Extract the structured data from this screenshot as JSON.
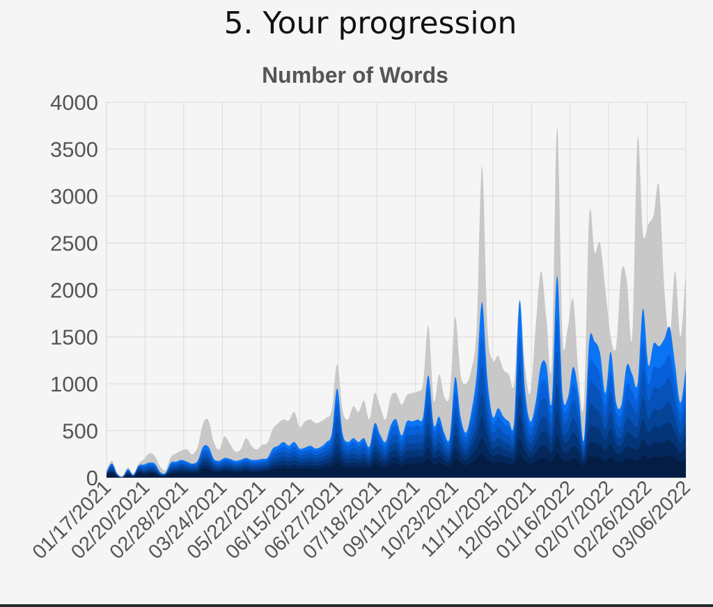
{
  "page": {
    "section_title": "5. Your progression"
  },
  "colors": {
    "background": "#f5f5f5",
    "grid": "#d9d9d9",
    "axis_text": "#555555",
    "layers": [
      "#c8c8c8",
      "#0a74f5",
      "#0760d9",
      "#0652b8",
      "#054397",
      "#053579",
      "#04285c",
      "#031d45"
    ]
  },
  "chart_data": {
    "type": "area",
    "stacked": true,
    "title": "Number of Words",
    "ylim": [
      0,
      4000
    ],
    "yticks": [
      0,
      500,
      1000,
      1500,
      2000,
      2500,
      3000,
      3500,
      4000
    ],
    "grid": true,
    "legend": "none",
    "x_tick_labels": [
      "01/17/2021",
      "02/20/2021",
      "02/28/2021",
      "03/24/2021",
      "05/22/2021",
      "06/15/2021",
      "06/27/2021",
      "07/18/2021",
      "09/11/2021",
      "10/23/2021",
      "11/11/2021",
      "12/05/2021",
      "01/16/2022",
      "02/07/2022",
      "02/26/2022",
      "03/06/2022"
    ],
    "points": [
      [
        0,
        80
      ],
      [
        1,
        180
      ],
      [
        2,
        50
      ],
      [
        3,
        20
      ],
      [
        4,
        110
      ],
      [
        5,
        40
      ],
      [
        6,
        150
      ],
      [
        7,
        200
      ],
      [
        8,
        260
      ],
      [
        9,
        230
      ],
      [
        10,
        120
      ],
      [
        11,
        80
      ],
      [
        12,
        220
      ],
      [
        13,
        260
      ],
      [
        14,
        290
      ],
      [
        15,
        300
      ],
      [
        16,
        250
      ],
      [
        17,
        330
      ],
      [
        18,
        580
      ],
      [
        19,
        610
      ],
      [
        20,
        380
      ],
      [
        21,
        300
      ],
      [
        22,
        440
      ],
      [
        23,
        360
      ],
      [
        24,
        280
      ],
      [
        25,
        300
      ],
      [
        26,
        420
      ],
      [
        27,
        340
      ],
      [
        28,
        300
      ],
      [
        29,
        350
      ],
      [
        30,
        370
      ],
      [
        31,
        520
      ],
      [
        32,
        580
      ],
      [
        33,
        620
      ],
      [
        34,
        610
      ],
      [
        35,
        700
      ],
      [
        36,
        540
      ],
      [
        37,
        600
      ],
      [
        38,
        620
      ],
      [
        39,
        580
      ],
      [
        40,
        600
      ],
      [
        41,
        640
      ],
      [
        42,
        720
      ],
      [
        43,
        1210
      ],
      [
        44,
        720
      ],
      [
        45,
        620
      ],
      [
        46,
        760
      ],
      [
        47,
        700
      ],
      [
        48,
        820
      ],
      [
        49,
        620
      ],
      [
        50,
        900
      ],
      [
        51,
        760
      ],
      [
        52,
        620
      ],
      [
        53,
        860
      ],
      [
        54,
        900
      ],
      [
        55,
        780
      ],
      [
        56,
        880
      ],
      [
        57,
        900
      ],
      [
        58,
        920
      ],
      [
        59,
        1000
      ],
      [
        60,
        1620
      ],
      [
        61,
        820
      ],
      [
        62,
        1100
      ],
      [
        63,
        860
      ],
      [
        64,
        900
      ],
      [
        65,
        1710
      ],
      [
        66,
        1100
      ],
      [
        67,
        1000
      ],
      [
        68,
        1150
      ],
      [
        69,
        1600
      ],
      [
        70,
        3320
      ],
      [
        71,
        1600
      ],
      [
        72,
        1250
      ],
      [
        73,
        1300
      ],
      [
        74,
        1150
      ],
      [
        75,
        1100
      ],
      [
        76,
        1000
      ],
      [
        77,
        1900
      ],
      [
        78,
        1200
      ],
      [
        79,
        900
      ],
      [
        80,
        1600
      ],
      [
        81,
        2200
      ],
      [
        82,
        1700
      ],
      [
        83,
        1200
      ],
      [
        84,
        3730
      ],
      [
        85,
        1500
      ],
      [
        86,
        1600
      ],
      [
        87,
        1900
      ],
      [
        88,
        1100
      ],
      [
        89,
        800
      ],
      [
        90,
        2800
      ],
      [
        91,
        2400
      ],
      [
        92,
        2500
      ],
      [
        93,
        2000
      ],
      [
        94,
        1500
      ],
      [
        95,
        1400
      ],
      [
        96,
        2200
      ],
      [
        97,
        2100
      ],
      [
        98,
        1500
      ],
      [
        99,
        3620
      ],
      [
        100,
        2600
      ],
      [
        101,
        2700
      ],
      [
        102,
        2800
      ],
      [
        103,
        3110
      ],
      [
        104,
        2000
      ],
      [
        105,
        1500
      ],
      [
        106,
        2200
      ],
      [
        107,
        1500
      ],
      [
        108,
        2200
      ]
    ],
    "series_layers": [
      {
        "values": [
          80,
          180,
          50,
          20,
          110,
          40,
          150,
          200,
          260,
          230,
          120,
          80,
          220,
          260,
          290,
          300,
          250,
          330,
          580,
          610,
          380,
          300,
          440,
          360,
          280,
          300,
          420,
          340,
          300,
          350,
          370,
          520,
          580,
          620,
          610,
          700,
          540,
          600,
          620,
          580,
          600,
          640,
          720,
          1210,
          720,
          620,
          760,
          700,
          820,
          620,
          900,
          760,
          620,
          860,
          900,
          780,
          880,
          900,
          920,
          1000,
          1620,
          820,
          1100,
          860,
          900,
          1710,
          1100,
          1000,
          1150,
          1600,
          3320,
          1600,
          1250,
          1300,
          1150,
          1100,
          1000,
          1900,
          1200,
          900,
          1600,
          2200,
          1700,
          1200,
          3730,
          1500,
          1600,
          1900,
          1100,
          800,
          2800,
          2400,
          2500,
          2000,
          1500,
          1400,
          2200,
          2100,
          1500,
          3620,
          2600,
          2700,
          2800,
          3110,
          2000,
          1500,
          2200,
          1500,
          2200
        ]
      },
      {
        "values": [
          60,
          150,
          40,
          10,
          90,
          30,
          130,
          140,
          160,
          150,
          60,
          50,
          160,
          170,
          190,
          170,
          150,
          180,
          330,
          330,
          200,
          180,
          210,
          200,
          180,
          190,
          210,
          190,
          190,
          200,
          210,
          310,
          340,
          380,
          340,
          380,
          310,
          320,
          340,
          310,
          330,
          380,
          470,
          950,
          470,
          380,
          420,
          380,
          420,
          330,
          580,
          460,
          380,
          560,
          620,
          450,
          600,
          600,
          620,
          640,
          1090,
          560,
          650,
          470,
          430,
          1070,
          650,
          480,
          700,
          1100,
          1870,
          1050,
          650,
          740,
          650,
          600,
          600,
          1880,
          950,
          600,
          800,
          1200,
          1200,
          800,
          2150,
          900,
          850,
          1180,
          900,
          400,
          1460,
          1450,
          1330,
          900,
          1340,
          800,
          780,
          1200,
          1100,
          1000,
          1800,
          1200,
          1430,
          1400,
          1480,
          1600,
          1200,
          800,
          1170
        ]
      },
      {
        "values": [
          55,
          140,
          35,
          10,
          80,
          28,
          120,
          120,
          140,
          130,
          50,
          45,
          140,
          150,
          170,
          150,
          140,
          160,
          290,
          280,
          180,
          160,
          190,
          180,
          160,
          170,
          190,
          170,
          170,
          180,
          190,
          270,
          300,
          330,
          300,
          330,
          280,
          290,
          300,
          280,
          300,
          340,
          420,
          800,
          420,
          340,
          380,
          340,
          380,
          300,
          520,
          410,
          340,
          500,
          550,
          400,
          540,
          540,
          560,
          570,
          950,
          500,
          580,
          420,
          390,
          900,
          580,
          430,
          620,
          900,
          1500,
          900,
          580,
          650,
          580,
          540,
          540,
          1500,
          800,
          540,
          700,
          1000,
          1000,
          700,
          1700,
          780,
          740,
          1000,
          780,
          360,
          1200,
          1200,
          1100,
          780,
          1120,
          700,
          680,
          1000,
          920,
          860,
          1450,
          1000,
          1180,
          1160,
          1220,
          1300,
          1000,
          700,
          980
        ]
      },
      {
        "values": [
          50,
          120,
          30,
          8,
          70,
          25,
          110,
          100,
          120,
          110,
          40,
          40,
          120,
          130,
          150,
          130,
          125,
          140,
          250,
          240,
          160,
          140,
          170,
          160,
          140,
          150,
          170,
          150,
          150,
          160,
          170,
          230,
          260,
          280,
          260,
          280,
          240,
          250,
          260,
          240,
          260,
          290,
          350,
          650,
          360,
          290,
          320,
          290,
          320,
          260,
          440,
          350,
          290,
          420,
          460,
          340,
          450,
          450,
          470,
          480,
          780,
          420,
          480,
          360,
          330,
          740,
          480,
          370,
          510,
          740,
          1200,
          740,
          480,
          540,
          480,
          450,
          450,
          1200,
          650,
          450,
          580,
          820,
          820,
          580,
          1350,
          650,
          620,
          820,
          650,
          310,
          980,
          980,
          900,
          650,
          920,
          580,
          560,
          820,
          760,
          710,
          1150,
          820,
          960,
          950,
          1000,
          1060,
          820,
          580,
          800
        ]
      },
      {
        "values": [
          45,
          100,
          25,
          5,
          60,
          20,
          95,
          80,
          100,
          90,
          35,
          35,
          100,
          110,
          125,
          110,
          105,
          115,
          210,
          200,
          135,
          120,
          140,
          135,
          120,
          125,
          140,
          125,
          125,
          135,
          140,
          190,
          210,
          230,
          210,
          230,
          200,
          205,
          215,
          200,
          215,
          240,
          285,
          480,
          290,
          240,
          260,
          240,
          260,
          215,
          350,
          285,
          240,
          340,
          370,
          280,
          360,
          360,
          375,
          385,
          600,
          340,
          385,
          295,
          270,
          580,
          385,
          300,
          405,
          580,
          900,
          580,
          385,
          430,
          385,
          360,
          360,
          900,
          500,
          360,
          460,
          630,
          630,
          460,
          1000,
          510,
          490,
          630,
          510,
          260,
          740,
          740,
          690,
          510,
          700,
          460,
          440,
          630,
          590,
          550,
          860,
          630,
          730,
          720,
          760,
          800,
          630,
          460,
          610
        ]
      },
      {
        "values": [
          40,
          85,
          20,
          4,
          50,
          16,
          80,
          65,
          80,
          72,
          30,
          30,
          82,
          90,
          100,
          90,
          86,
          95,
          170,
          160,
          110,
          98,
          115,
          110,
          98,
          102,
          115,
          102,
          102,
          110,
          115,
          155,
          170,
          185,
          170,
          185,
          162,
          166,
          174,
          162,
          174,
          194,
          230,
          360,
          235,
          194,
          210,
          194,
          210,
          174,
          280,
          230,
          194,
          270,
          295,
          225,
          285,
          285,
          298,
          305,
          460,
          270,
          305,
          240,
          220,
          450,
          305,
          244,
          320,
          450,
          650,
          450,
          305,
          340,
          305,
          285,
          285,
          650,
          390,
          285,
          365,
          480,
          480,
          365,
          700,
          400,
          385,
          480,
          400,
          215,
          540,
          540,
          510,
          400,
          520,
          365,
          350,
          480,
          450,
          425,
          620,
          480,
          550,
          540,
          570,
          590,
          480,
          365,
          470
        ]
      },
      {
        "values": [
          35,
          70,
          15,
          3,
          40,
          12,
          65,
          50,
          62,
          56,
          25,
          25,
          64,
          70,
          78,
          70,
          67,
          74,
          130,
          124,
          86,
          77,
          90,
          86,
          77,
          80,
          90,
          80,
          80,
          86,
          90,
          120,
          130,
          142,
          130,
          142,
          125,
          128,
          134,
          125,
          134,
          150,
          175,
          250,
          180,
          150,
          162,
          150,
          162,
          134,
          210,
          175,
          150,
          205,
          222,
          172,
          215,
          215,
          224,
          230,
          320,
          205,
          230,
          185,
          170,
          312,
          230,
          188,
          240,
          312,
          420,
          312,
          230,
          254,
          230,
          215,
          215,
          420,
          280,
          215,
          265,
          335,
          335,
          265,
          450,
          285,
          275,
          335,
          285,
          175,
          370,
          370,
          352,
          285,
          358,
          265,
          255,
          335,
          315,
          300,
          415,
          335,
          375,
          370,
          388,
          400,
          335,
          265,
          325
        ]
      },
      {
        "values": [
          30,
          55,
          12,
          2,
          30,
          9,
          50,
          38,
          45,
          42,
          20,
          20,
          48,
          52,
          58,
          52,
          50,
          55,
          95,
          92,
          65,
          58,
          68,
          65,
          58,
          60,
          68,
          60,
          60,
          65,
          68,
          88,
          95,
          103,
          95,
          103,
          92,
          94,
          98,
          92,
          98,
          108,
          124,
          165,
          127,
          108,
          115,
          108,
          115,
          98,
          145,
          124,
          108,
          142,
          152,
          120,
          148,
          148,
          153,
          157,
          205,
          142,
          157,
          130,
          120,
          200,
          157,
          132,
          163,
          200,
          250,
          200,
          157,
          170,
          157,
          148,
          148,
          250,
          180,
          148,
          172,
          205,
          205,
          172,
          260,
          182,
          176,
          205,
          182,
          125,
          225,
          225,
          216,
          182,
          219,
          172,
          166,
          205,
          195,
          187,
          240,
          205,
          222,
          220,
          228,
          234,
          205,
          172,
          200
        ]
      }
    ]
  }
}
